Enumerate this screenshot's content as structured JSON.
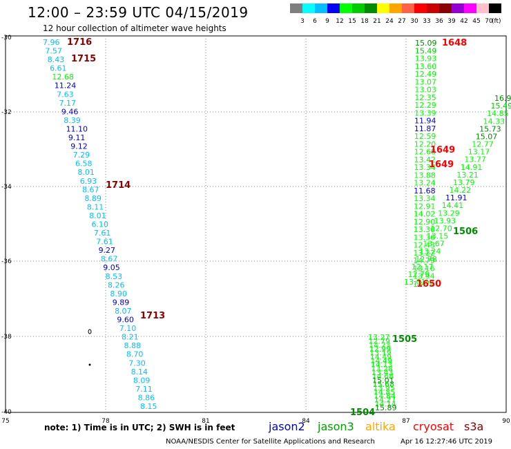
{
  "title": "12:00 – 23:59 UTC 04/15/2019",
  "subtitle": "12 hour collection of altimeter wave heights",
  "legend": {
    "unit": "(ft)",
    "colors": [
      "#7f7f7f",
      "#00ffff",
      "#00bfff",
      "#0000ff",
      "#00ff00",
      "#00cd00",
      "#008b00",
      "#ffff00",
      "#ffa500",
      "#ff6347",
      "#ff0000",
      "#cd0000",
      "#8b0000",
      "#9400d3",
      "#ff00ff",
      "#ffc0cb",
      "#000000"
    ],
    "labels": [
      "3",
      "6",
      "9",
      "12",
      "15",
      "18",
      "21",
      "24",
      "27",
      "30",
      "33",
      "36",
      "39",
      "42",
      "45",
      "70"
    ]
  },
  "axes": {
    "x_ticks": [
      "75",
      "78",
      "81",
      "84",
      "87",
      "90"
    ],
    "y_ticks": [
      "-30",
      "-32",
      "-34",
      "-36",
      "-38",
      "-40"
    ]
  },
  "track_left": {
    "values": [
      "7.96",
      "7.57",
      "8.43",
      "6.61",
      "12.68",
      "11.24",
      "7.63",
      "7.17",
      "9.46",
      "8.39",
      "11.10",
      "9.11",
      "9.12",
      "7.29",
      "6.58",
      "8.01",
      "6.93",
      "8.67",
      "8.89",
      "8.11",
      "8.01",
      "6.10",
      "7.61",
      "7.61",
      "9.27",
      "8.67",
      "9.05",
      "8.53",
      "8.26",
      "8.90",
      "9.89",
      "8.07",
      "9.60",
      "7.10",
      "8.21",
      "8.88",
      "8.70",
      "7.30",
      "8.14",
      "8.09",
      "7.11",
      "8.86",
      "8.15"
    ],
    "colors": [
      "#00bfff",
      "#00bfff",
      "#00bfff",
      "#00bfff",
      "#00ff00",
      "#0000cd",
      "#00bfff",
      "#00bfff",
      "#0000cd",
      "#00bfff",
      "#0000cd",
      "#0000cd",
      "#0000cd",
      "#00bfff",
      "#00bfff",
      "#00bfff",
      "#00bfff",
      "#00bfff",
      "#00bfff",
      "#00bfff",
      "#00bfff",
      "#00bfff",
      "#00bfff",
      "#00bfff",
      "#0000cd",
      "#00bfff",
      "#0000cd",
      "#00bfff",
      "#00bfff",
      "#00bfff",
      "#0000cd",
      "#00bfff",
      "#0000cd",
      "#00bfff",
      "#00bfff",
      "#00bfff",
      "#00bfff",
      "#00bfff",
      "#00bfff",
      "#00bfff",
      "#00bfff",
      "#00bfff",
      "#00bfff"
    ],
    "times": [
      "1716",
      "1715",
      "1714",
      "1713"
    ]
  },
  "track_right": {
    "values": [
      "15.09",
      "15.49",
      "13.93",
      "13.60",
      "12.49",
      "13.07",
      "13.03",
      "12.35",
      "12.29",
      "13.39",
      "11.94",
      "11.87",
      "12.59",
      "12.20",
      "12.68",
      "13.42",
      "13.34",
      "13.88",
      "13.24",
      "11.68",
      "13.34",
      "12.91",
      "14.02",
      "12.90",
      "13.30",
      "13.36",
      "12.43",
      "13.22",
      "14.79",
      "13.16",
      "13.94",
      "13.74"
    ],
    "colors": [
      "#008b00",
      "#00cd00",
      "#00ff00",
      "#00ff00",
      "#00ff00",
      "#00ff00",
      "#00ff00",
      "#00ff00",
      "#00ff00",
      "#00ff00",
      "#0000cd",
      "#0000cd",
      "#00ff00",
      "#00ff00",
      "#00ff00",
      "#00ff00",
      "#00ff00",
      "#00ff00",
      "#00ff00",
      "#0000cd",
      "#00ff00",
      "#00ff00",
      "#00ff00",
      "#00ff00",
      "#00ff00",
      "#00ff00",
      "#00ff00",
      "#00ff00",
      "#00ff00",
      "#00ff00",
      "#00ff00",
      "#00ff00"
    ],
    "times": [
      "1648",
      "1649",
      "1649",
      "1650"
    ]
  },
  "track_diag": {
    "values": [
      "16.9",
      "15.49",
      "14.85",
      "14.33",
      "15.73",
      "15.07",
      "12.77",
      "13.17",
      "13.77",
      "14.91",
      "13.21",
      "13.79",
      "14.22",
      "11.91",
      "14.41",
      "13.29",
      "13.93",
      "12.70",
      "13.15",
      "13.67",
      "13.24",
      "12.78",
      "12.17",
      "12.79",
      "13.01"
    ],
    "colors": [
      "#008b00",
      "#00cd00",
      "#00ff00",
      "#00ff00",
      "#008b00",
      "#008b00",
      "#00ff00",
      "#00ff00",
      "#00ff00",
      "#00ff00",
      "#00ff00",
      "#00ff00",
      "#00ff00",
      "#0000cd",
      "#00ff00",
      "#00ff00",
      "#00ff00",
      "#00ff00",
      "#00ff00",
      "#00ff00",
      "#00ff00",
      "#00ff00",
      "#00ff00",
      "#00ff00",
      "#00ff00"
    ],
    "times": [
      "1506"
    ]
  },
  "track_bottom": {
    "values": [
      "13.27",
      "12.79",
      "14.23",
      "12.99",
      "13.19",
      "14.49",
      "14.49",
      "14.13",
      "13.28",
      "13.43",
      "14.68",
      "15.01",
      "15.68",
      "13.95",
      "14.85",
      "14.84",
      "14.27",
      "14.14",
      "15.89"
    ],
    "colors": [
      "#00ff00",
      "#00ff00",
      "#00ff00",
      "#00ff00",
      "#00ff00",
      "#00ff00",
      "#00ff00",
      "#00ff00",
      "#00ff00",
      "#00ff00",
      "#00ff00",
      "#008b00",
      "#00cd00",
      "#00ff00",
      "#00ff00",
      "#00ff00",
      "#00ff00",
      "#00ff00",
      "#008b00"
    ],
    "times": [
      "1505",
      "1504"
    ]
  },
  "note": "note:  1) Time is in UTC;  2) SWH is in feet",
  "satellites": [
    {
      "name": "jason2",
      "color": "#0000cd"
    },
    {
      "name": "jason3",
      "color": "#00a000"
    },
    {
      "name": "altika",
      "color": "#ffa500"
    },
    {
      "name": "cryosat",
      "color": "#ff0000"
    },
    {
      "name": "s3a",
      "color": "#8b0000"
    }
  ],
  "footer_left": "NOAA/NESDIS Center for Satellite Applications and Research",
  "footer_right": "Apr 16 12:27:46 UTC 2019"
}
